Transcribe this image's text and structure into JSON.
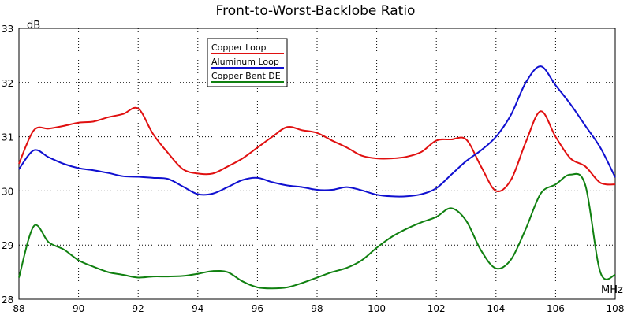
{
  "chart_data": {
    "type": "line",
    "title": "Front-to-Worst-Backlobe Ratio",
    "xlabel": "MHz",
    "ylabel": "dB",
    "xlim": [
      88,
      108
    ],
    "ylim": [
      28,
      33
    ],
    "x_ticks": [
      "88",
      "90",
      "92",
      "94",
      "96",
      "98",
      "100",
      "102",
      "104",
      "106",
      "108"
    ],
    "y_ticks": [
      "28",
      "29",
      "30",
      "31",
      "32",
      "33"
    ],
    "grid": true,
    "legend_position": "top-center",
    "x": [
      88,
      88.5,
      89,
      89.5,
      90,
      90.5,
      91,
      91.5,
      92,
      92.5,
      93,
      93.5,
      94,
      94.5,
      95,
      95.5,
      96,
      96.5,
      97,
      97.5,
      98,
      98.5,
      99,
      99.5,
      100,
      100.5,
      101,
      101.5,
      102,
      102.5,
      103,
      103.5,
      104,
      104.5,
      105,
      105.5,
      106,
      106.5,
      107,
      107.5,
      108
    ],
    "series": [
      {
        "name": "Copper Loop",
        "color": "#e01010",
        "values": [
          30.5,
          31.12,
          31.15,
          31.2,
          31.26,
          31.28,
          31.36,
          31.42,
          31.52,
          31.05,
          30.7,
          30.4,
          30.32,
          30.32,
          30.45,
          30.6,
          30.8,
          31.0,
          31.18,
          31.12,
          31.07,
          30.93,
          30.8,
          30.65,
          30.6,
          30.6,
          30.63,
          30.72,
          30.93,
          30.95,
          30.95,
          30.45,
          30.0,
          30.2,
          30.9,
          31.47,
          31.0,
          30.6,
          30.45,
          30.15,
          30.12
        ]
      },
      {
        "name": "Aluminum Loop",
        "color": "#1010d0",
        "values": [
          30.4,
          30.75,
          30.62,
          30.5,
          30.42,
          30.38,
          30.33,
          30.27,
          30.26,
          30.24,
          30.22,
          30.08,
          29.94,
          29.95,
          30.07,
          30.2,
          30.24,
          30.16,
          30.1,
          30.07,
          30.02,
          30.02,
          30.07,
          30.01,
          29.93,
          29.9,
          29.9,
          29.94,
          30.05,
          30.3,
          30.55,
          30.75,
          31.0,
          31.4,
          32.0,
          32.3,
          31.95,
          31.6,
          31.2,
          30.8,
          30.25
        ]
      },
      {
        "name": "Copper Bent DE",
        "color": "#108010",
        "values": [
          28.4,
          29.35,
          29.05,
          28.92,
          28.72,
          28.6,
          28.5,
          28.45,
          28.4,
          28.42,
          28.42,
          28.43,
          28.47,
          28.52,
          28.5,
          28.33,
          28.22,
          28.2,
          28.22,
          28.3,
          28.4,
          28.5,
          28.58,
          28.72,
          28.95,
          29.15,
          29.3,
          29.42,
          29.52,
          29.68,
          29.45,
          28.9,
          28.57,
          28.73,
          29.3,
          29.95,
          30.12,
          30.3,
          30.1,
          28.5,
          28.45
        ]
      }
    ]
  }
}
